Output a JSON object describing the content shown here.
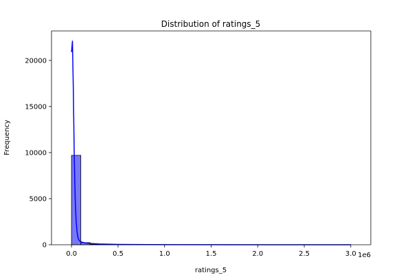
{
  "chart_data": {
    "type": "bar",
    "title": "Distribution of ratings_5",
    "xlabel": "ratings_5",
    "ylabel": "Frequency",
    "x_offset_label": "1e6",
    "x_scale": 1000000,
    "xlim": [
      -215000,
      3215000
    ],
    "ylim": [
      0,
      23200
    ],
    "xticks": [
      0,
      500000,
      1000000,
      1500000,
      2000000,
      2500000,
      3000000
    ],
    "xtick_labels": [
      "0.0",
      "0.5",
      "1.0",
      "1.5",
      "2.0",
      "2.5",
      "3.0"
    ],
    "yticks": [
      0,
      5000,
      10000,
      15000,
      20000
    ],
    "ytick_labels": [
      "0",
      "5000",
      "10000",
      "15000",
      "20000"
    ],
    "grid": false,
    "bin_width": 100000,
    "bins": [
      {
        "x_start": 0,
        "x_end": 100000,
        "count": 9700
      },
      {
        "x_start": 100000,
        "x_end": 200000,
        "count": 230
      },
      {
        "x_start": 200000,
        "x_end": 300000,
        "count": 60
      },
      {
        "x_start": 300000,
        "x_end": 400000,
        "count": 25
      },
      {
        "x_start": 400000,
        "x_end": 500000,
        "count": 12
      },
      {
        "x_start": 500000,
        "x_end": 600000,
        "count": 8
      },
      {
        "x_start": 600000,
        "x_end": 700000,
        "count": 5
      },
      {
        "x_start": 700000,
        "x_end": 800000,
        "count": 3
      },
      {
        "x_start": 800000,
        "x_end": 900000,
        "count": 2
      },
      {
        "x_start": 900000,
        "x_end": 1000000,
        "count": 2
      },
      {
        "x_start": 1000000,
        "x_end": 1100000,
        "count": 1
      },
      {
        "x_start": 1100000,
        "x_end": 1200000,
        "count": 1
      },
      {
        "x_start": 1200000,
        "x_end": 1300000,
        "count": 1
      },
      {
        "x_start": 1300000,
        "x_end": 1400000,
        "count": 1
      },
      {
        "x_start": 2900000,
        "x_end": 3000000,
        "count": 1
      }
    ],
    "kde": {
      "x": [
        0,
        10000,
        20000,
        30000,
        40000,
        50000,
        60000,
        70000,
        80000,
        90000,
        100000,
        120000,
        150000,
        200000,
        300000,
        500000,
        800000,
        1200000,
        2000000,
        3000000
      ],
      "y": [
        20900,
        22100,
        16500,
        9200,
        4800,
        2500,
        1350,
        780,
        500,
        380,
        320,
        260,
        200,
        140,
        80,
        40,
        18,
        8,
        3,
        1
      ]
    },
    "colors": {
      "bar_fill": "#7878f7",
      "bar_edge": "#000000",
      "kde_line": "#0000ff"
    }
  }
}
